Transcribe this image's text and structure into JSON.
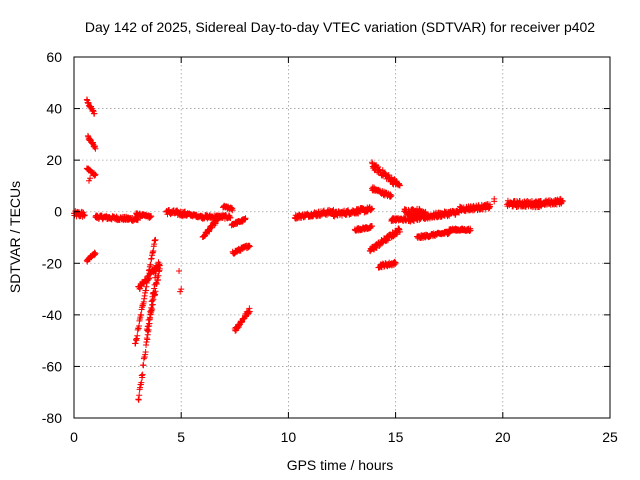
{
  "chart_data": {
    "type": "scatter",
    "title": "Day 142 of 2025, Sidereal Day-to-day VTEC variation (SDTVAR) for receiver p402",
    "xlabel": "GPS time / hours",
    "ylabel": "SDTVAR / TECUs",
    "xlim": [
      0,
      25
    ],
    "ylim": [
      -80,
      60
    ],
    "xticks": [
      "0",
      "5",
      "10",
      "15",
      "20",
      "25"
    ],
    "yticks": [
      "-80",
      "-60",
      "-40",
      "-20",
      "0",
      "20",
      "40",
      "60"
    ],
    "grid": true,
    "marker": "+",
    "color": "#ff0000",
    "segments": [
      {
        "x": [
          0.0,
          0.5
        ],
        "y": [
          -1,
          -1
        ],
        "spread": 2.5
      },
      {
        "x": [
          0.6,
          0.95
        ],
        "y": [
          43,
          38
        ],
        "spread": 1.2
      },
      {
        "x": [
          0.65,
          1.0
        ],
        "y": [
          29,
          25
        ],
        "spread": 1.2
      },
      {
        "x": [
          0.6,
          1.0
        ],
        "y": [
          17,
          14
        ],
        "spread": 1.0
      },
      {
        "x": [
          0.6,
          1.0
        ],
        "y": [
          -19,
          -16
        ],
        "spread": 1.0
      },
      {
        "x": [
          1.0,
          3.0
        ],
        "y": [
          -2,
          -3
        ],
        "spread": 1.5
      },
      {
        "x": [
          2.9,
          3.6
        ],
        "y": [
          -1,
          -2
        ],
        "spread": 1.0
      },
      {
        "x": [
          2.85,
          3.8
        ],
        "y": [
          -52,
          -10
        ],
        "spread": 2.0
      },
      {
        "x": [
          3.0,
          4.0
        ],
        "y": [
          -30,
          -20
        ],
        "spread": 2.0
      },
      {
        "x": [
          3.0,
          3.8
        ],
        "y": [
          -74,
          -25
        ],
        "spread": 3.0
      },
      {
        "x": [
          3.4,
          4.0
        ],
        "y": [
          -46,
          -22
        ],
        "spread": 3.0
      },
      {
        "x": [
          4.3,
          5.3
        ],
        "y": [
          0,
          -1
        ],
        "spread": 2.0
      },
      {
        "x": [
          5.3,
          6.0
        ],
        "y": [
          -1,
          -2
        ],
        "spread": 1.0
      },
      {
        "x": [
          6.0,
          7.3
        ],
        "y": [
          -2,
          -2
        ],
        "spread": 1.5
      },
      {
        "x": [
          6.0,
          6.8
        ],
        "y": [
          -10,
          -2
        ],
        "spread": 1.5
      },
      {
        "x": [
          6.95,
          7.4
        ],
        "y": [
          2,
          1
        ],
        "spread": 1.0
      },
      {
        "x": [
          7.35,
          8.0
        ],
        "y": [
          -5,
          -3
        ],
        "spread": 1.0
      },
      {
        "x": [
          7.4,
          8.2
        ],
        "y": [
          -16,
          -13
        ],
        "spread": 1.2
      },
      {
        "x": [
          7.5,
          8.2
        ],
        "y": [
          -46,
          -38
        ],
        "spread": 1.8
      },
      {
        "x": [
          10.3,
          11.2
        ],
        "y": [
          -2,
          -1
        ],
        "spread": 1.5
      },
      {
        "x": [
          11.2,
          12.1
        ],
        "y": [
          -1,
          0
        ],
        "spread": 2.0
      },
      {
        "x": [
          12.1,
          13.9
        ],
        "y": [
          -1,
          1
        ],
        "spread": 2.0
      },
      {
        "x": [
          13.9,
          15.2
        ],
        "y": [
          18,
          10
        ],
        "spread": 2.5
      },
      {
        "x": [
          13.9,
          14.8
        ],
        "y": [
          9,
          6
        ],
        "spread": 1.5
      },
      {
        "x": [
          13.1,
          13.9
        ],
        "y": [
          -7,
          -6
        ],
        "spread": 1.0
      },
      {
        "x": [
          13.8,
          15.2
        ],
        "y": [
          -15,
          -7
        ],
        "spread": 2.0
      },
      {
        "x": [
          14.2,
          15.0
        ],
        "y": [
          -21,
          -20
        ],
        "spread": 1.5
      },
      {
        "x": [
          14.8,
          15.5
        ],
        "y": [
          -3,
          -3
        ],
        "spread": 1.2
      },
      {
        "x": [
          15.4,
          16.4
        ],
        "y": [
          0,
          0
        ],
        "spread": 2.5
      },
      {
        "x": [
          15.6,
          18.0
        ],
        "y": [
          -3,
          0
        ],
        "spread": 2.0
      },
      {
        "x": [
          16.0,
          17.5
        ],
        "y": [
          -10,
          -8
        ],
        "spread": 1.2
      },
      {
        "x": [
          17.5,
          18.5
        ],
        "y": [
          -7,
          -7
        ],
        "spread": 1.0
      },
      {
        "x": [
          18.0,
          19.4
        ],
        "y": [
          1,
          2
        ],
        "spread": 2.0
      },
      {
        "x": [
          20.2,
          21.8
        ],
        "y": [
          3,
          3
        ],
        "spread": 2.5
      },
      {
        "x": [
          21.5,
          22.8
        ],
        "y": [
          3,
          4
        ],
        "spread": 2.0
      }
    ],
    "points": [
      [
        0.7,
        12
      ],
      [
        0.75,
        13
      ],
      [
        4.9,
        -23
      ],
      [
        4.95,
        -31
      ],
      [
        5.0,
        -30
      ],
      [
        19.3,
        3
      ],
      [
        19.6,
        5
      ],
      [
        19.6,
        4
      ],
      [
        19.4,
        2
      ],
      [
        21.0,
        4
      ],
      [
        22.7,
        5
      ]
    ]
  }
}
